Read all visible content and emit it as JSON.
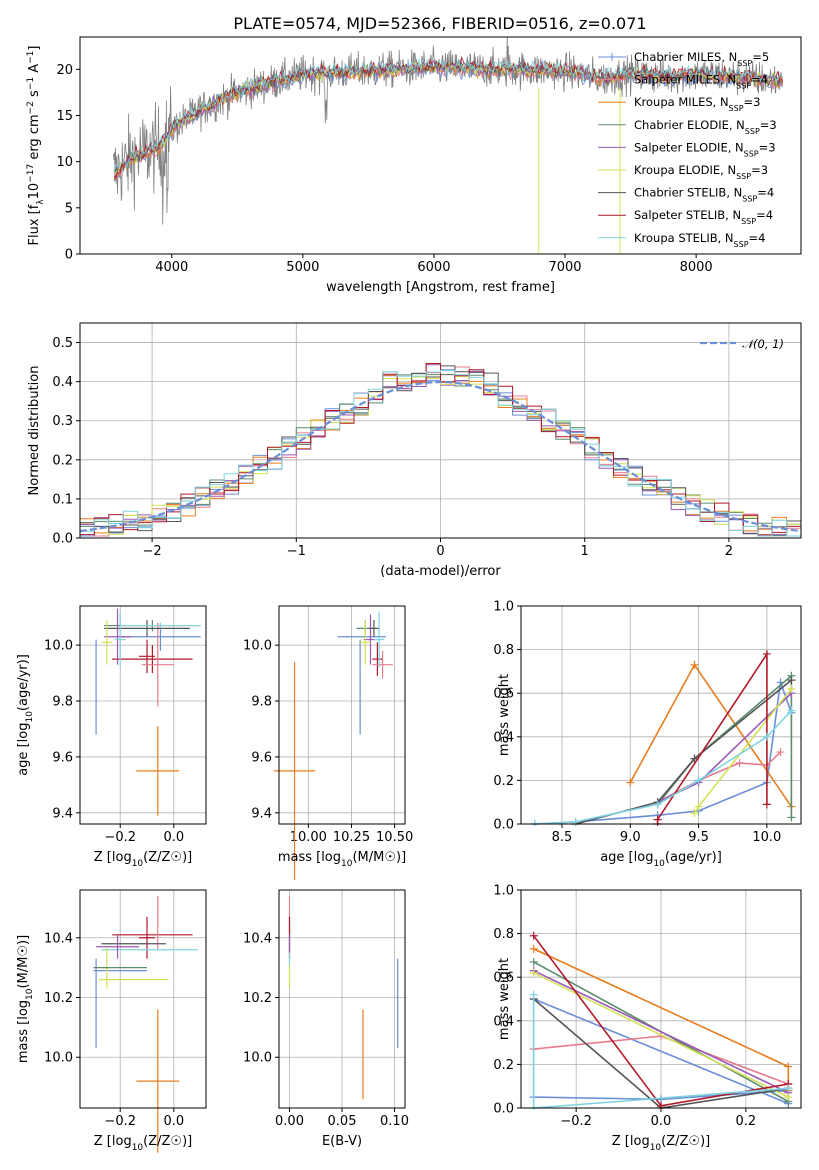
{
  "figure_title": "PLATE=0574, MJD=52366, FIBERID=0516, z=0.071",
  "series_colors": [
    "#6a8fd8",
    "#e07b39",
    "#e87d1e",
    "#5b8c6b",
    "#9b59b6",
    "#d4e157",
    "#555555",
    "#b0192a",
    "#7fd3e0"
  ],
  "chart_data": [
    {
      "id": "spectrum",
      "type": "line",
      "xlabel": "wavelength [Angstrom, rest frame]",
      "ylabel": "Flux [f_λ 10^-17 erg cm^-2 s^-1 A^-1]",
      "xlim": [
        3300,
        8800
      ],
      "ylim": [
        0,
        23.5
      ],
      "xticks": [
        4000,
        5000,
        6000,
        7000,
        8000
      ],
      "yticks": [
        0,
        5,
        10,
        15,
        20
      ],
      "grid": false,
      "legend_position": "top-right",
      "legend": [
        {
          "label": "Chabrier MILES, N",
          "sub": "SSP",
          "tail": "=5",
          "color": "#6a8fd8"
        },
        {
          "label": "Salpeter MILES, N",
          "sub": "SSP",
          "tail": "=4",
          "color": "#e77c8e"
        },
        {
          "label": "Kroupa MILES, N",
          "sub": "SSP",
          "tail": "=3",
          "color": "#e87d1e"
        },
        {
          "label": "Chabrier ELODIE, N",
          "sub": "SSP",
          "tail": "=3",
          "color": "#5b8c6b"
        },
        {
          "label": "Salpeter ELODIE, N",
          "sub": "SSP",
          "tail": "=3",
          "color": "#9b59b6"
        },
        {
          "label": "Kroupa ELODIE, N",
          "sub": "SSP",
          "tail": "=3",
          "color": "#d4e157"
        },
        {
          "label": "Chabrier STELIB, N",
          "sub": "SSP",
          "tail": "=4",
          "color": "#555555"
        },
        {
          "label": "Salpeter STELIB, N",
          "sub": "SSP",
          "tail": "=4",
          "color": "#b0192a"
        },
        {
          "label": "Kroupa STELIB, N",
          "sub": "SSP",
          "tail": "=4",
          "color": "#7fd3e0"
        }
      ],
      "continuum_knots": [
        [
          3550,
          8.5
        ],
        [
          3700,
          10.5
        ],
        [
          3900,
          11.5
        ],
        [
          4000,
          13.5
        ],
        [
          4200,
          15.5
        ],
        [
          4500,
          17.5
        ],
        [
          5000,
          19.5
        ],
        [
          5500,
          19.8
        ],
        [
          6000,
          20.2
        ],
        [
          6500,
          20.0
        ],
        [
          7000,
          19.8
        ],
        [
          7300,
          19.0
        ],
        [
          7500,
          19.5
        ],
        [
          7800,
          19.2
        ],
        [
          8000,
          19.5
        ],
        [
          8600,
          18.8
        ]
      ]
    },
    {
      "id": "residuals",
      "type": "histogram",
      "xlabel": "(data-model)/error",
      "ylabel": "Normed distribution",
      "xlim": [
        -2.5,
        2.5
      ],
      "ylim": [
        0,
        0.55
      ],
      "xticks": [
        -2,
        -1,
        0,
        1,
        2
      ],
      "yticks": [
        0.0,
        0.1,
        0.2,
        0.3,
        0.4,
        0.5
      ],
      "grid": true,
      "legend_position": "top-right",
      "gaussian_label": "𝒩(0, 1)",
      "gaussian_color": "#6a8fd8"
    },
    {
      "id": "age_vs_Z",
      "type": "errorbar",
      "xlabel": "Z [log10(Z/Z☉)]",
      "ylabel": "age  [log10(age/yr)]",
      "xlim": [
        -0.35,
        0.12
      ],
      "ylim": [
        9.36,
        10.14
      ],
      "xticks": [
        -0.2,
        0.0
      ],
      "yticks": [
        9.4,
        9.6,
        9.8,
        10.0
      ],
      "grid": true,
      "points": [
        {
          "x": -0.06,
          "y": 9.55,
          "xerr": 0.08,
          "yerr": 0.16,
          "color": "#e87d1e"
        },
        {
          "x": -0.05,
          "y": 10.03,
          "xerr": 0.15,
          "yerr": 0.05,
          "color": "#6a8fd8"
        },
        {
          "x": -0.29,
          "y": 9.85,
          "xerr": 0.0,
          "yerr": 0.17,
          "color": "#6a8fd8"
        },
        {
          "x": -0.08,
          "y": 9.95,
          "xerr": 0.15,
          "yerr": 0.05,
          "color": "#b0192a"
        },
        {
          "x": -0.1,
          "y": 9.96,
          "xerr": 0.03,
          "yerr": 0.06,
          "color": "#b0192a"
        },
        {
          "x": -0.06,
          "y": 9.93,
          "xerr": 0.06,
          "yerr": 0.15,
          "color": "#e77c8e"
        },
        {
          "x": -0.08,
          "y": 10.07,
          "xerr": 0.18,
          "yerr": 0.02,
          "color": "#5b8c6b"
        },
        {
          "x": -0.1,
          "y": 10.06,
          "xerr": 0.16,
          "yerr": 0.03,
          "color": "#555555"
        },
        {
          "x": -0.21,
          "y": 10.03,
          "xerr": 0.05,
          "yerr": 0.1,
          "color": "#9b59b6"
        },
        {
          "x": -0.25,
          "y": 10.01,
          "xerr": 0.02,
          "yerr": 0.08,
          "color": "#d4e157"
        },
        {
          "x": -0.2,
          "y": 10.02,
          "xerr": 0.02,
          "yerr": 0.1,
          "color": "#7fd3e0"
        },
        {
          "x": -0.05,
          "y": 10.07,
          "xerr": 0.15,
          "yerr": 0.01,
          "color": "#7fd3e0"
        }
      ]
    },
    {
      "id": "age_vs_mass",
      "type": "errorbar",
      "xlabel": "mass [log10(M/M☉)]",
      "ylabel": "",
      "xlim": [
        9.83,
        10.56
      ],
      "ylim": [
        9.36,
        10.14
      ],
      "xticks": [
        10.0,
        10.25,
        10.5
      ],
      "yticks": [
        9.4,
        9.6,
        9.8,
        10.0
      ],
      "grid": true,
      "points": [
        {
          "x": 9.92,
          "y": 9.55,
          "xerr": 0.12,
          "yerr": 0.39,
          "color": "#e87d1e"
        },
        {
          "x": 10.31,
          "y": 10.03,
          "xerr": 0.14,
          "yerr": 0.0,
          "color": "#6a8fd8"
        },
        {
          "x": 10.3,
          "y": 9.85,
          "xerr": 0.0,
          "yerr": 0.17,
          "color": "#6a8fd8"
        },
        {
          "x": 10.4,
          "y": 9.95,
          "xerr": 0.03,
          "yerr": 0.06,
          "color": "#b0192a"
        },
        {
          "x": 10.43,
          "y": 9.93,
          "xerr": 0.06,
          "yerr": 0.05,
          "color": "#e77c8e"
        },
        {
          "x": 10.33,
          "y": 10.06,
          "xerr": 0.05,
          "yerr": 0.03,
          "color": "#5b8c6b"
        },
        {
          "x": 10.38,
          "y": 10.06,
          "xerr": 0.03,
          "yerr": 0.03,
          "color": "#555555"
        },
        {
          "x": 10.36,
          "y": 10.02,
          "xerr": 0.04,
          "yerr": 0.09,
          "color": "#9b59b6"
        },
        {
          "x": 10.33,
          "y": 10.01,
          "xerr": 0.03,
          "yerr": 0.08,
          "color": "#d4e157"
        },
        {
          "x": 10.41,
          "y": 10.02,
          "xerr": 0.03,
          "yerr": 0.1,
          "color": "#7fd3e0"
        }
      ]
    },
    {
      "id": "weight_vs_age",
      "type": "line",
      "xlabel": "age  [log10(age/yr)]",
      "ylabel": "mass weight",
      "xlim": [
        8.2,
        10.25
      ],
      "ylim": [
        0,
        1.0
      ],
      "xticks": [
        8.5,
        9.0,
        9.5,
        10.0
      ],
      "yticks": [
        0.0,
        0.2,
        0.4,
        0.6,
        0.8,
        1.0
      ],
      "grid": true,
      "series": [
        {
          "color": "#6a8fd8",
          "x": [
            8.3,
            8.6,
            9.2,
            9.5,
            10.0,
            10.1,
            10.18
          ],
          "y": [
            0.0,
            0.01,
            0.04,
            0.06,
            0.19,
            0.65,
            0.51
          ]
        },
        {
          "color": "#e87d1e",
          "x": [
            9.0,
            9.47,
            10.18
          ],
          "y": [
            0.19,
            0.73,
            0.08
          ]
        },
        {
          "color": "#e77c8e",
          "x": [
            9.2,
            9.5,
            9.8,
            10.0,
            10.1
          ],
          "y": [
            0.1,
            0.2,
            0.28,
            0.27,
            0.33
          ]
        },
        {
          "color": "#5b8c6b",
          "x": [
            9.2,
            9.47,
            10.18,
            10.18
          ],
          "y": [
            0.09,
            0.3,
            0.68,
            0.03
          ]
        },
        {
          "color": "#9b59b6",
          "x": [
            9.2,
            9.5,
            10.18
          ],
          "y": [
            0.1,
            0.19,
            0.6
          ]
        },
        {
          "color": "#d4e157",
          "x": [
            9.47,
            9.5,
            10.18
          ],
          "y": [
            0.05,
            0.08,
            0.62
          ]
        },
        {
          "color": "#555555",
          "x": [
            8.6,
            9.2,
            9.47,
            10.18
          ],
          "y": [
            0.0,
            0.1,
            0.3,
            0.66
          ]
        },
        {
          "color": "#b0192a",
          "x": [
            9.2,
            9.2,
            10.0,
            10.0
          ],
          "y": [
            0.0,
            0.02,
            0.78,
            0.09
          ]
        },
        {
          "color": "#7fd3e0",
          "x": [
            8.3,
            8.6,
            9.2,
            9.5,
            10.0,
            10.18
          ],
          "y": [
            0.0,
            0.01,
            0.09,
            0.2,
            0.4,
            0.52
          ]
        }
      ]
    },
    {
      "id": "mass_vs_Z",
      "type": "errorbar",
      "xlabel": "Z [log10(Z/Z☉)]",
      "ylabel": "mass [log10(M/M☉)]",
      "xlim": [
        -0.35,
        0.12
      ],
      "ylim": [
        9.83,
        10.56
      ],
      "xticks": [
        -0.2,
        0.0
      ],
      "yticks": [
        10.0,
        10.2,
        10.4
      ],
      "grid": true,
      "points": [
        {
          "x": -0.06,
          "y": 9.92,
          "xerr": 0.08,
          "yerr": 0.24,
          "color": "#e87d1e"
        },
        {
          "x": -0.2,
          "y": 10.29,
          "xerr": 0.1,
          "yerr": 0.0,
          "color": "#6a8fd8"
        },
        {
          "x": -0.29,
          "y": 10.18,
          "xerr": 0.0,
          "yerr": 0.15,
          "color": "#6a8fd8"
        },
        {
          "x": -0.1,
          "y": 10.4,
          "xerr": 0.03,
          "yerr": 0.07,
          "color": "#b0192a"
        },
        {
          "x": -0.08,
          "y": 10.41,
          "xerr": 0.15,
          "yerr": 0.0,
          "color": "#b0192a"
        },
        {
          "x": -0.06,
          "y": 10.45,
          "xerr": 0.0,
          "yerr": 0.09,
          "color": "#e77c8e"
        },
        {
          "x": -0.09,
          "y": 10.36,
          "xerr": 0.18,
          "yerr": 0.0,
          "color": "#7fd3e0"
        },
        {
          "x": -0.15,
          "y": 10.38,
          "xerr": 0.12,
          "yerr": 0.0,
          "color": "#555555"
        },
        {
          "x": -0.21,
          "y": 10.37,
          "xerr": 0.08,
          "yerr": 0.04,
          "color": "#9b59b6"
        },
        {
          "x": -0.25,
          "y": 10.3,
          "xerr": 0.02,
          "yerr": 0.07,
          "color": "#d4e157"
        },
        {
          "x": -0.2,
          "y": 10.3,
          "xerr": 0.1,
          "yerr": 0.0,
          "color": "#5b8c6b"
        },
        {
          "x": -0.15,
          "y": 10.26,
          "xerr": 0.13,
          "yerr": 0.0,
          "color": "#d4e157"
        }
      ]
    },
    {
      "id": "mass_vs_ebv",
      "type": "errorbar",
      "xlabel": "E(B-V)",
      "ylabel": "",
      "xlim": [
        -0.01,
        0.11
      ],
      "ylim": [
        9.83,
        10.56
      ],
      "xticks": [
        0.0,
        0.05,
        0.1
      ],
      "yticks": [
        10.0,
        10.2,
        10.4
      ],
      "grid": true,
      "points": [
        {
          "x": 0.07,
          "y": 10.01,
          "xerr": 0.0,
          "yerr": 0.15,
          "color": "#e87d1e"
        },
        {
          "x": 0.103,
          "y": 10.18,
          "xerr": 0.0,
          "yerr": 0.15,
          "color": "#6a8fd8"
        },
        {
          "x": 0.0,
          "y": 10.45,
          "xerr": 0.0,
          "yerr": 0.09,
          "color": "#e77c8e"
        },
        {
          "x": 0.0,
          "y": 10.4,
          "xerr": 0.0,
          "yerr": 0.07,
          "color": "#b0192a"
        },
        {
          "x": 0.0,
          "y": 10.3,
          "xerr": 0.0,
          "yerr": 0.07,
          "color": "#d4e157"
        },
        {
          "x": 0.0,
          "y": 10.36,
          "xerr": 0.0,
          "yerr": 0.05,
          "color": "#7fd3e0"
        },
        {
          "x": 0.0,
          "y": 10.38,
          "xerr": 0.0,
          "yerr": 0.03,
          "color": "#9b59b6"
        }
      ]
    },
    {
      "id": "weight_vs_Z",
      "type": "line",
      "xlabel": "Z [log10(Z/Z☉)]",
      "ylabel": "mass weight",
      "xlim": [
        -0.33,
        0.33
      ],
      "ylim": [
        0,
        1.0
      ],
      "xticks": [
        -0.2,
        0.0,
        0.2
      ],
      "yticks": [
        0.0,
        0.2,
        0.4,
        0.6,
        0.8,
        1.0
      ],
      "grid": true,
      "series": [
        {
          "color": "#6a8fd8",
          "x": [
            0.3,
            -0.3,
            -0.3,
            0.0,
            0.3
          ],
          "y": [
            0.02,
            0.5,
            0.05,
            0.04,
            0.08
          ]
        },
        {
          "color": "#e87d1e",
          "x": [
            -0.3,
            0.3,
            0.3
          ],
          "y": [
            0.73,
            0.19,
            0.08
          ]
        },
        {
          "color": "#e77c8e",
          "x": [
            -0.3,
            0.0,
            0.3
          ],
          "y": [
            0.27,
            0.33,
            0.11
          ]
        },
        {
          "color": "#5b8c6b",
          "x": [
            -0.3,
            0.3,
            0.3
          ],
          "y": [
            0.67,
            0.03,
            0.09
          ]
        },
        {
          "color": "#9b59b6",
          "x": [
            -0.3,
            0.3
          ],
          "y": [
            0.63,
            0.07
          ]
        },
        {
          "color": "#d4e157",
          "x": [
            -0.3,
            0.3
          ],
          "y": [
            0.62,
            0.05
          ]
        },
        {
          "color": "#555555",
          "x": [
            -0.3,
            0.0,
            0.3
          ],
          "y": [
            0.5,
            0.0,
            0.09
          ]
        },
        {
          "color": "#b0192a",
          "x": [
            -0.3,
            0.0,
            0.3
          ],
          "y": [
            0.79,
            0.01,
            0.11
          ]
        },
        {
          "color": "#7fd3e0",
          "x": [
            -0.3,
            -0.3,
            0.3
          ],
          "y": [
            0.52,
            0.0,
            0.09
          ]
        }
      ]
    }
  ]
}
